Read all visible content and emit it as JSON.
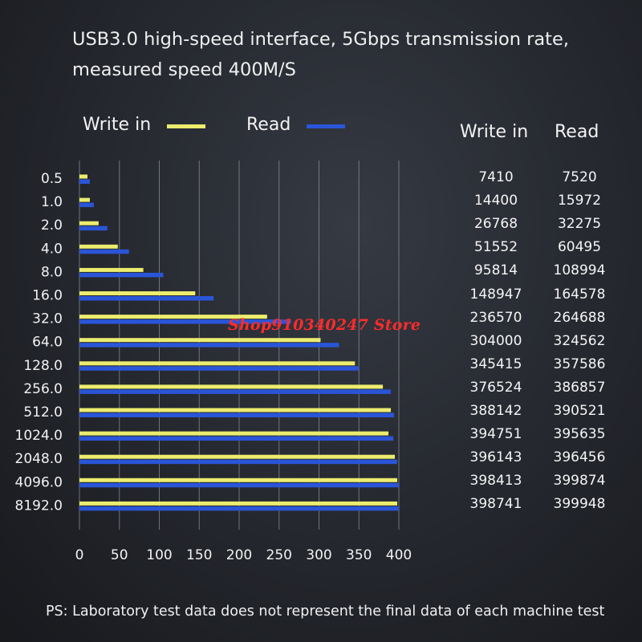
{
  "headline": {
    "line1": "USB3.0 high-speed interface, 5Gbps transmission rate,",
    "line2": "measured speed 400M/S"
  },
  "colors": {
    "write": "#ecec6e",
    "read": "#2a55d8",
    "grid": "#8a8d94",
    "watermark": "#ff2b2b"
  },
  "chart_data": {
    "type": "bar",
    "orientation": "horizontal",
    "categories": [
      "0.5",
      "1.0",
      "2.0",
      "4.0",
      "8.0",
      "16.0",
      "32.0",
      "64.0",
      "128.0",
      "256.0",
      "512.0",
      "1024.0",
      "2048.0",
      "4096.0",
      "8192.0"
    ],
    "series": [
      {
        "name": "Write in",
        "values": [
          10,
          13,
          24,
          48,
          80,
          145,
          235,
          302,
          345,
          380,
          390,
          387,
          395,
          398,
          398
        ]
      },
      {
        "name": "Read",
        "values": [
          13,
          18,
          35,
          62,
          105,
          168,
          265,
          325,
          350,
          390,
          394,
          393,
          398,
          400,
          400
        ]
      }
    ],
    "xticks": [
      "0",
      "50",
      "100",
      "150",
      "200",
      "250",
      "300",
      "350",
      "400"
    ],
    "xlim": [
      0,
      400
    ],
    "grid": true,
    "legend": "top-left"
  },
  "table": {
    "headers": [
      "Write in",
      "Read"
    ],
    "rows": [
      [
        "7410",
        "7520"
      ],
      [
        "14400",
        "15972"
      ],
      [
        "26768",
        "32275"
      ],
      [
        "51552",
        "60495"
      ],
      [
        "95814",
        "108994"
      ],
      [
        "148947",
        "164578"
      ],
      [
        "236570",
        "264688"
      ],
      [
        "304000",
        "324562"
      ],
      [
        "345415",
        "357586"
      ],
      [
        "376524",
        "386857"
      ],
      [
        "388142",
        "390521"
      ],
      [
        "394751",
        "395635"
      ],
      [
        "396143",
        "396456"
      ],
      [
        "398413",
        "399874"
      ],
      [
        "398741",
        "399948"
      ]
    ]
  },
  "watermark": "Shop910340247 Store",
  "footer": "PS: Laboratory test data does not represent the final data of each machine test"
}
